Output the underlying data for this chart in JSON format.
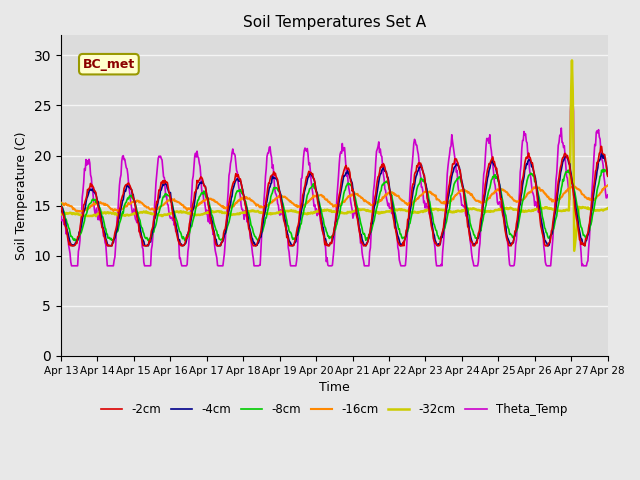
{
  "title": "Soil Temperatures Set A",
  "xlabel": "Time",
  "ylabel": "Soil Temperature (C)",
  "ylim": [
    0,
    32
  ],
  "yticks": [
    0,
    5,
    10,
    15,
    20,
    25,
    30
  ],
  "annotation": "BC_met",
  "legend_labels": [
    "-2cm",
    "-4cm",
    "-8cm",
    "-16cm",
    "-32cm",
    "Theta_Temp"
  ],
  "legend_colors": [
    "#dd0000",
    "#00008b",
    "#00cc00",
    "#ff8800",
    "#cccc00",
    "#cc00cc"
  ],
  "line_widths": [
    1.2,
    1.2,
    1.2,
    1.5,
    1.8,
    1.2
  ],
  "x_tick_labels": [
    "Apr 13",
    "Apr 14",
    "Apr 15",
    "Apr 16",
    "Apr 17",
    "Apr 18",
    "Apr 19",
    "Apr 20",
    "Apr 21",
    "Apr 22",
    "Apr 23",
    "Apr 24",
    "Apr 25",
    "Apr 26",
    "Apr 27",
    "Apr 28"
  ],
  "plot_bg": "#dcdcdc",
  "fig_bg": "#e8e8e8",
  "grid_color": "#f5f5f5",
  "num_days": 15,
  "samples_per_day": 48
}
